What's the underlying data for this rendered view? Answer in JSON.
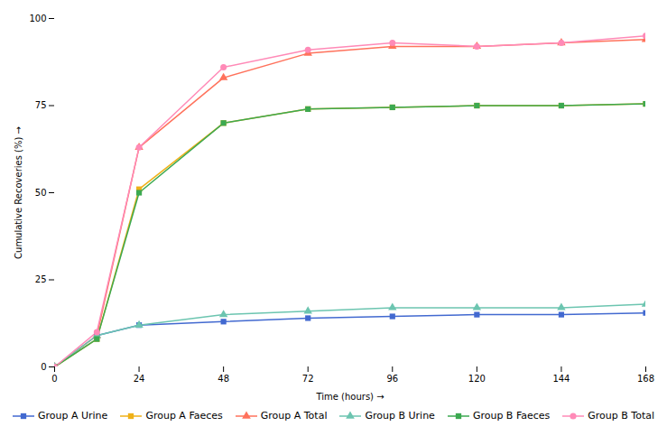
{
  "chart_data": {
    "type": "line",
    "xlabel": "Time (hours)",
    "ylabel": "Cumulative Recoveries (%)",
    "x": [
      0,
      12,
      24,
      48,
      72,
      96,
      120,
      144,
      168
    ],
    "series": [
      {
        "name": "Group A Urine",
        "marker": "square",
        "values": [
          0,
          9,
          12,
          13,
          14,
          14.5,
          15,
          15,
          15.5
        ]
      },
      {
        "name": "Group A Faeces",
        "marker": "square",
        "values": [
          0,
          8,
          51,
          70,
          74,
          74.5,
          75,
          75,
          75.5
        ]
      },
      {
        "name": "Group A Total",
        "marker": "triangle",
        "values": [
          0,
          9,
          63,
          83,
          90,
          92,
          92,
          93,
          94
        ]
      },
      {
        "name": "Group B Urine",
        "marker": "triangle",
        "values": [
          0,
          9,
          12,
          15,
          16,
          17,
          17,
          17,
          18
        ]
      },
      {
        "name": "Group B Faeces",
        "marker": "square",
        "values": [
          0,
          8,
          50,
          70,
          74,
          74.5,
          75,
          75,
          75.5
        ]
      },
      {
        "name": "Group B Total",
        "marker": "circle",
        "values": [
          0,
          10,
          63,
          86,
          91,
          93,
          92,
          93,
          95
        ]
      }
    ],
    "xlim": [
      0,
      168
    ],
    "ylim": [
      0,
      100
    ],
    "xticks": [
      0,
      24,
      48,
      72,
      96,
      120,
      144,
      168
    ],
    "yticks": [
      0,
      25,
      50,
      75,
      100
    ],
    "grid": false,
    "legend": "bottom"
  }
}
